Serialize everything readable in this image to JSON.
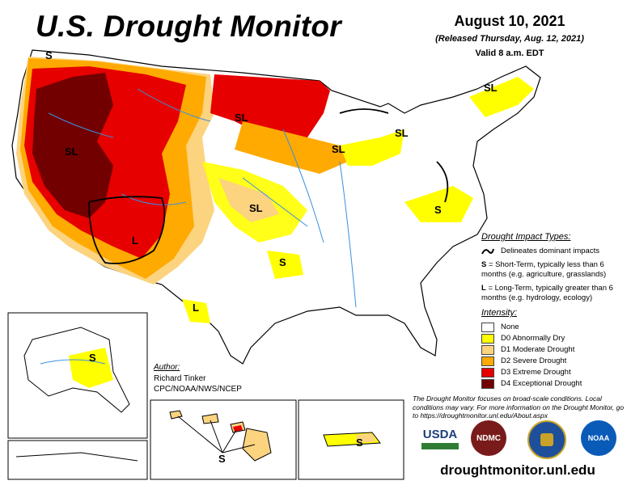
{
  "header": {
    "title": "U.S. Drought Monitor",
    "date": "August 10, 2021",
    "released": "(Released Thursday, Aug. 12, 2021)",
    "valid": "Valid 8 a.m. EDT"
  },
  "impact": {
    "heading": "Drought Impact Types:",
    "delineates": "Delineates dominant impacts",
    "short_key": "S",
    "short_text": " = Short-Term, typically less than 6 months (e.g. agriculture, grasslands)",
    "long_key": "L",
    "long_text": " = Long-Term, typically greater than 6 months (e.g. hydrology, ecology)"
  },
  "intensity": {
    "heading": "Intensity:",
    "levels": [
      {
        "label": "None",
        "color": "#ffffff"
      },
      {
        "label": "D0 Abnormally Dry",
        "color": "#ffff00"
      },
      {
        "label": "D1 Moderate Drought",
        "color": "#fcd37f"
      },
      {
        "label": "D2 Severe Drought",
        "color": "#ffaa00"
      },
      {
        "label": "D3 Extreme Drought",
        "color": "#e60000"
      },
      {
        "label": "D4 Exceptional Drought",
        "color": "#730000"
      }
    ]
  },
  "author": {
    "heading": "Author:",
    "name": "Richard Tinker",
    "org": "CPC/NOAA/NWS/NCEP"
  },
  "footnote": "The Drought Monitor focuses on broad-scale conditions. Local conditions may vary. For more information on the Drought Monitor, go to https://droughtmonitor.unl.edu/About.aspx",
  "logos": {
    "usda": "USDA",
    "ndmc": "NDMC",
    "noaa": "NOAA"
  },
  "url": "droughtmonitor.unl.edu",
  "map_labels": [
    "S",
    "SL",
    "SL",
    "SL",
    "SL",
    "L",
    "S",
    "SL",
    "S",
    "L",
    "S",
    "S",
    "S",
    "SL"
  ]
}
